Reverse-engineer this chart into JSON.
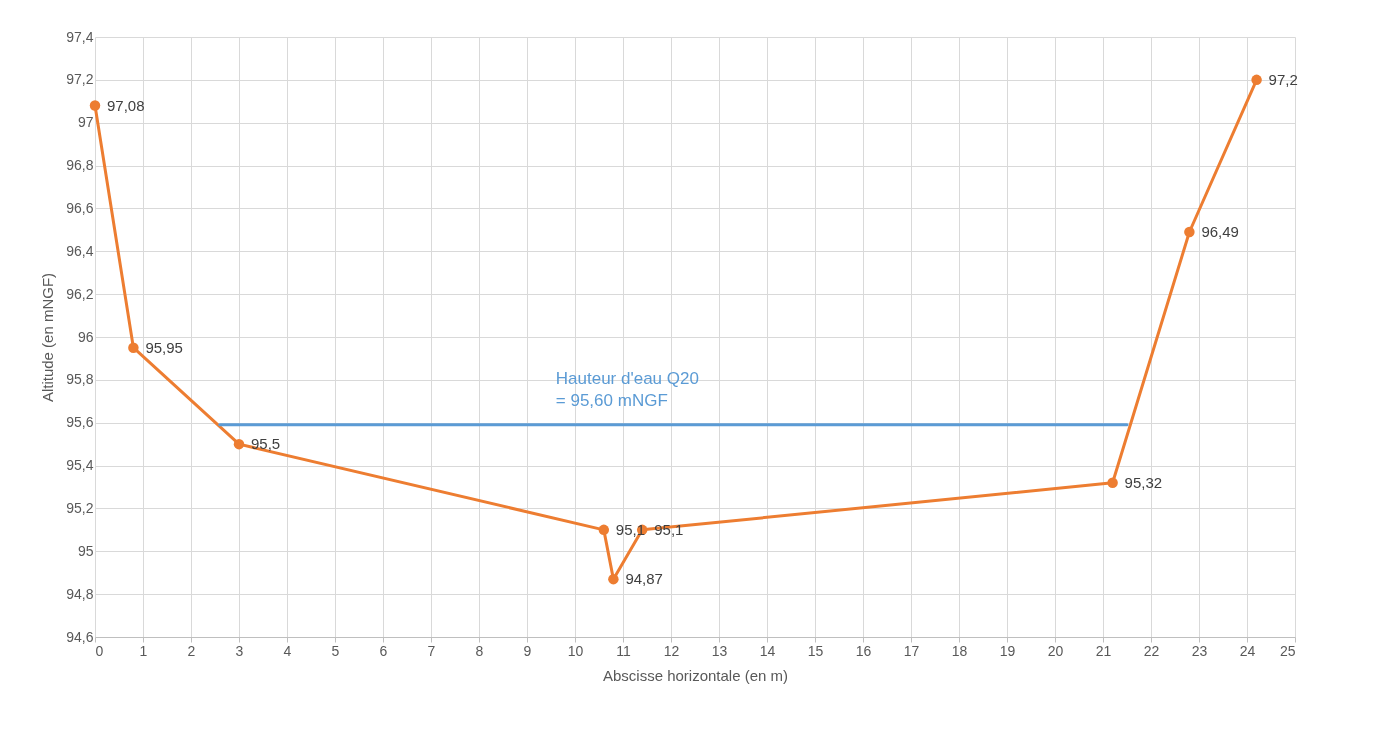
{
  "chart_data": {
    "type": "line",
    "xlabel": "Abscisse horizontale (en m)",
    "ylabel": "Altitude (en mNGF)",
    "series": [
      {
        "color": "#ed7d31",
        "marker": "circle",
        "x": [
          0,
          0.8,
          3,
          10.6,
          10.8,
          11.4,
          21.2,
          22.8,
          24.2
        ],
        "values": [
          97.08,
          95.95,
          95.5,
          95.1,
          94.87,
          95.1,
          95.32,
          96.49,
          97.2
        ],
        "value_labels": [
          "97,08",
          "95,95",
          "95,5",
          "95,1",
          "94,87",
          "95,1",
          "95,32",
          "96,49",
          "97,2"
        ]
      },
      {
        "color": "#5b9bd5",
        "marker": "none",
        "x": [
          2.6,
          21.5
        ],
        "values": [
          95.59,
          95.59
        ]
      }
    ],
    "annotations": [
      {
        "text": "Hauteur d'eau Q20\n= 95,60 mNGF",
        "x": 9.6,
        "y": 95.6
      }
    ],
    "xlim": [
      0,
      25
    ],
    "xticks": [
      0,
      1,
      2,
      3,
      4,
      5,
      6,
      7,
      8,
      9,
      10,
      11,
      12,
      13,
      14,
      15,
      16,
      17,
      18,
      19,
      20,
      21,
      22,
      23,
      24,
      25
    ],
    "ylim": [
      94.6,
      97.4
    ],
    "yticks": [
      {
        "value": 94.6,
        "label": "94,6"
      },
      {
        "value": 94.8,
        "label": "94,8"
      },
      {
        "value": 95,
        "label": "95"
      },
      {
        "value": 95.2,
        "label": "95,2"
      },
      {
        "value": 95.4,
        "label": "95,4"
      },
      {
        "value": 95.6,
        "label": "95,6"
      },
      {
        "value": 95.8,
        "label": "95,8"
      },
      {
        "value": 96,
        "label": "96"
      },
      {
        "value": 96.2,
        "label": "96,2"
      },
      {
        "value": 96.4,
        "label": "96,4"
      },
      {
        "value": 96.6,
        "label": "96,6"
      },
      {
        "value": 96.8,
        "label": "96,8"
      },
      {
        "value": 97,
        "label": "97"
      },
      {
        "value": 97.2,
        "label": "97,2"
      },
      {
        "value": 97.4,
        "label": "97,4"
      }
    ],
    "grid": true
  }
}
